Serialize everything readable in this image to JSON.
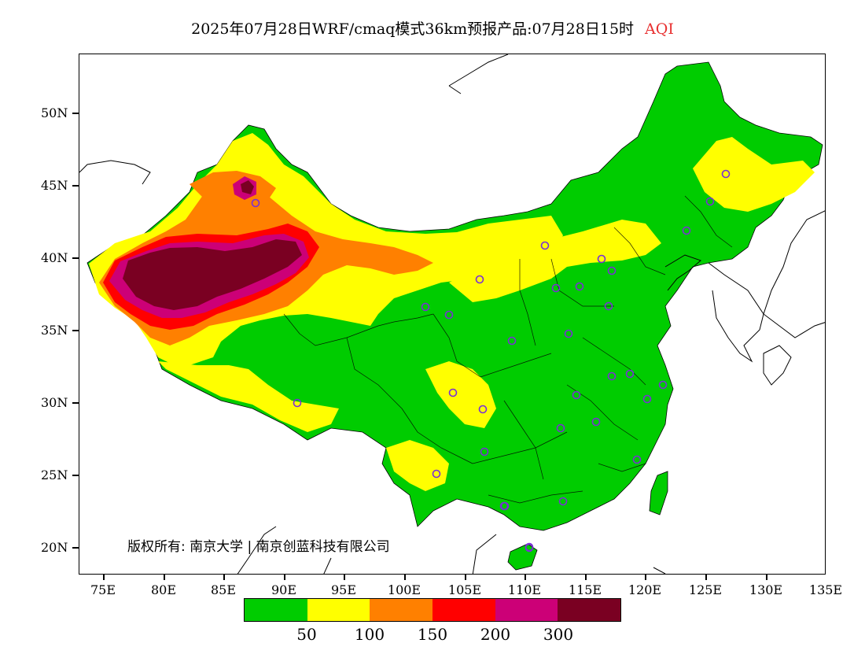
{
  "title": {
    "main": "2025年07月28日WRF/cmaq模式36km预报产品:07月28日15时",
    "variable": "AQI",
    "variable_color": "#e83030"
  },
  "map": {
    "lon_range": [
      73,
      135
    ],
    "lat_range": [
      18,
      54
    ],
    "lat_labels": [
      "50N",
      "45N",
      "40N",
      "35N",
      "30N",
      "25N",
      "20N"
    ],
    "lon_labels": [
      "75E",
      "80E",
      "85E",
      "90E",
      "95E",
      "100E",
      "105E",
      "110E",
      "115E",
      "120E",
      "125E",
      "130E",
      "135E"
    ],
    "copyright": "版权所有: 南京大学 | 南京创蓝科技有限公司",
    "station_marker_color": "#7a2fd6"
  },
  "legend": {
    "colors": [
      "#00cc00",
      "#ffff00",
      "#ff8000",
      "#ff0000",
      "#cc0077",
      "#7a0022"
    ],
    "labels": [
      "50",
      "100",
      "150",
      "200",
      "300"
    ]
  }
}
